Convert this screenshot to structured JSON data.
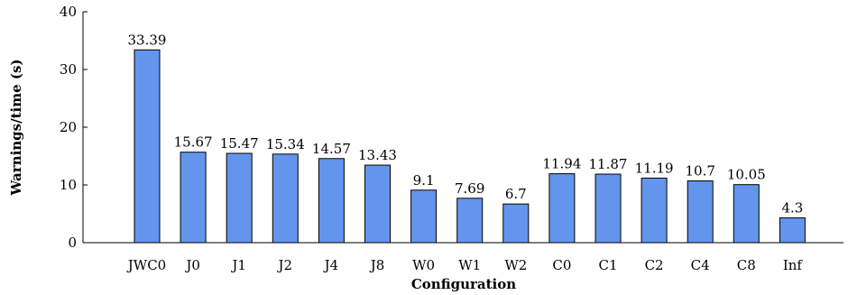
{
  "chart_data": {
    "type": "bar",
    "categories": [
      "JWC0",
      "J0",
      "J1",
      "J2",
      "J4",
      "J8",
      "W0",
      "W1",
      "W2",
      "C0",
      "C1",
      "C2",
      "C4",
      "C8",
      "Inf"
    ],
    "values": [
      33.39,
      15.67,
      15.47,
      15.34,
      14.57,
      13.43,
      9.1,
      7.69,
      6.7,
      11.94,
      11.87,
      11.19,
      10.7,
      10.05,
      4.3
    ],
    "data_labels": [
      "33.39",
      "15.67",
      "15.47",
      "15.34",
      "14.57",
      "13.43",
      "9.1",
      "7.69",
      "6.7",
      "11.94",
      "11.87",
      "11.19",
      "10.7",
      "10.05",
      "4.3"
    ],
    "xlabel": "Configuration",
    "ylabel": "Warnings/time (s)",
    "ylim": [
      0,
      40
    ],
    "yticks": [
      0,
      10,
      20,
      30,
      40
    ],
    "grid": false,
    "bar_color": "#6495ED",
    "bar_edge_color": "#000000"
  }
}
